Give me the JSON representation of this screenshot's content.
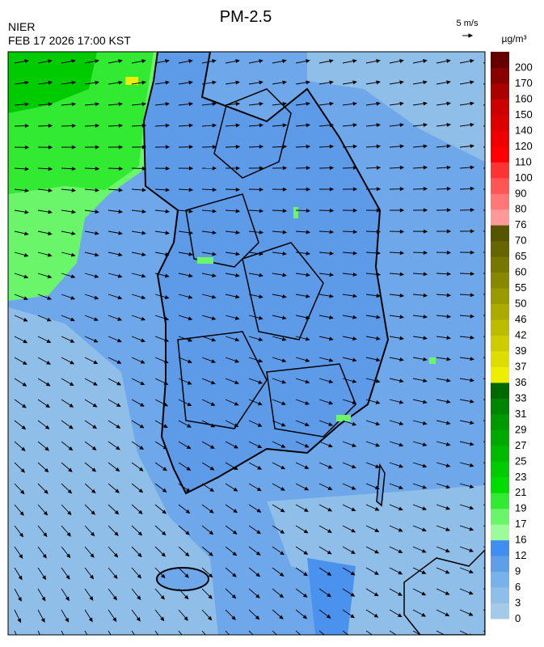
{
  "header": {
    "title": "PM-2.5",
    "agency": "NIER",
    "timestamp": "FEB 17 2026 17:00 KST",
    "wind_scale": "5 m/s",
    "unit": "µg/m³"
  },
  "colorbar": [
    {
      "value": 0,
      "color": "#a3cbe9"
    },
    {
      "value": 3,
      "color": "#8fbfe9"
    },
    {
      "value": 6,
      "color": "#79b1ea"
    },
    {
      "value": 9,
      "color": "#5f9fea"
    },
    {
      "value": 12,
      "color": "#3f8ef0"
    },
    {
      "value": 16,
      "color": "#9cfc9c"
    },
    {
      "value": 17,
      "color": "#6af56a"
    },
    {
      "value": 19,
      "color": "#33ea33"
    },
    {
      "value": 21,
      "color": "#00dc00"
    },
    {
      "value": 23,
      "color": "#00cb00"
    },
    {
      "value": 25,
      "color": "#00ba00"
    },
    {
      "value": 27,
      "color": "#00a900"
    },
    {
      "value": 29,
      "color": "#009900"
    },
    {
      "value": 31,
      "color": "#008500"
    },
    {
      "value": 33,
      "color": "#006a00"
    },
    {
      "value": 36,
      "color": "#eeee00"
    },
    {
      "value": 37,
      "color": "#dddd00"
    },
    {
      "value": 39,
      "color": "#cccc00"
    },
    {
      "value": 42,
      "color": "#bbbb00"
    },
    {
      "value": 46,
      "color": "#aaaa00"
    },
    {
      "value": 50,
      "color": "#999900"
    },
    {
      "value": 55,
      "color": "#888800"
    },
    {
      "value": 60,
      "color": "#777700"
    },
    {
      "value": 65,
      "color": "#666600"
    },
    {
      "value": 70,
      "color": "#555500"
    },
    {
      "value": 76,
      "color": "#ff9999"
    },
    {
      "value": 80,
      "color": "#ff7777"
    },
    {
      "value": 90,
      "color": "#ff5555"
    },
    {
      "value": 100,
      "color": "#ff3333"
    },
    {
      "value": 110,
      "color": "#ff0000"
    },
    {
      "value": 120,
      "color": "#ee0000"
    },
    {
      "value": 140,
      "color": "#dd0000"
    },
    {
      "value": 150,
      "color": "#cc0000"
    },
    {
      "value": 160,
      "color": "#aa0000"
    },
    {
      "value": 170,
      "color": "#880000"
    },
    {
      "value": 200,
      "color": "#660000"
    }
  ]
}
